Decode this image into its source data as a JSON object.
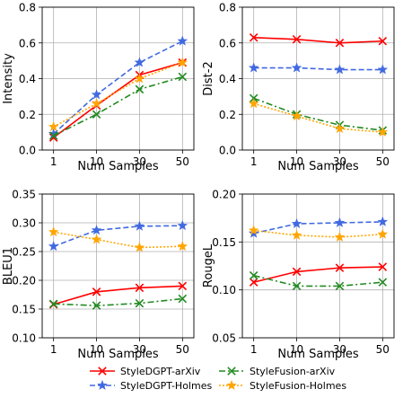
{
  "series_styles": [
    {
      "key": "arxiv_dgpt",
      "label": "StyleDGPT-arXiv",
      "color": "#ff0000",
      "dash": "",
      "marker": "x"
    },
    {
      "key": "holmes_dgpt",
      "label": "StyleDGPT-Holmes",
      "color": "#4169e1",
      "dash": "6,3",
      "marker": "star"
    },
    {
      "key": "arxiv_fusion",
      "label": "StyleFusion-arXiv",
      "color": "#228b22",
      "dash": "7,3,2,3",
      "marker": "x"
    },
    {
      "key": "holmes_fusion",
      "label": "StyleFusion-Holmes",
      "color": "#ffa500",
      "dash": "2,2",
      "marker": "star"
    }
  ],
  "chart_data": [
    {
      "type": "line",
      "x": [
        "1",
        "10",
        "30",
        "50"
      ],
      "xlabel": "Num Samples",
      "ylabel": "Intensity",
      "ylim": [
        0.0,
        0.8
      ],
      "yticks": [
        "0.0",
        "0.2",
        "0.4",
        "0.6",
        "0.8"
      ],
      "grid": true,
      "series": [
        {
          "name": "StyleDGPT-arXiv",
          "values": [
            0.07,
            0.25,
            0.42,
            0.49
          ]
        },
        {
          "name": "StyleDGPT-Holmes",
          "values": [
            0.09,
            0.31,
            0.49,
            0.61
          ]
        },
        {
          "name": "StyleFusion-arXiv",
          "values": [
            0.08,
            0.2,
            0.34,
            0.41
          ]
        },
        {
          "name": "StyleFusion-Holmes",
          "values": [
            0.13,
            0.26,
            0.4,
            0.49
          ]
        }
      ]
    },
    {
      "type": "line",
      "x": [
        "1",
        "10",
        "30",
        "50"
      ],
      "xlabel": "Num Samples",
      "ylabel": "Dist-2",
      "ylim": [
        0.0,
        0.8
      ],
      "yticks": [
        "0.0",
        "0.2",
        "0.4",
        "0.6",
        "0.8"
      ],
      "grid": true,
      "series": [
        {
          "name": "StyleDGPT-arXiv",
          "values": [
            0.63,
            0.62,
            0.6,
            0.61
          ]
        },
        {
          "name": "StyleDGPT-Holmes",
          "values": [
            0.46,
            0.46,
            0.45,
            0.45
          ]
        },
        {
          "name": "StyleFusion-arXiv",
          "values": [
            0.29,
            0.2,
            0.14,
            0.11
          ]
        },
        {
          "name": "StyleFusion-Holmes",
          "values": [
            0.26,
            0.19,
            0.12,
            0.1
          ]
        }
      ]
    },
    {
      "type": "line",
      "x": [
        "1",
        "10",
        "30",
        "50"
      ],
      "xlabel": "Num Samples",
      "ylabel": "BLEU1",
      "ylim": [
        0.1,
        0.35
      ],
      "yticks": [
        "0.10",
        "0.15",
        "0.20",
        "0.25",
        "0.30",
        "0.35"
      ],
      "grid": true,
      "series": [
        {
          "name": "StyleDGPT-arXiv",
          "values": [
            0.158,
            0.18,
            0.187,
            0.19
          ]
        },
        {
          "name": "StyleDGPT-Holmes",
          "values": [
            0.259,
            0.287,
            0.294,
            0.295
          ]
        },
        {
          "name": "StyleFusion-arXiv",
          "values": [
            0.159,
            0.156,
            0.16,
            0.168
          ]
        },
        {
          "name": "StyleFusion-Holmes",
          "values": [
            0.284,
            0.271,
            0.257,
            0.259
          ]
        }
      ]
    },
    {
      "type": "line",
      "x": [
        "1",
        "10",
        "30",
        "50"
      ],
      "xlabel": "Num Samples",
      "ylabel": "RougeL",
      "ylim": [
        0.05,
        0.2
      ],
      "yticks": [
        "0.05",
        "0.10",
        "0.15",
        "0.20"
      ],
      "grid": true,
      "series": [
        {
          "name": "StyleDGPT-arXiv",
          "values": [
            0.108,
            0.119,
            0.123,
            0.124
          ]
        },
        {
          "name": "StyleDGPT-Holmes",
          "values": [
            0.159,
            0.169,
            0.17,
            0.171
          ]
        },
        {
          "name": "StyleFusion-arXiv",
          "values": [
            0.115,
            0.104,
            0.104,
            0.108
          ]
        },
        {
          "name": "StyleFusion-Holmes",
          "values": [
            0.162,
            0.157,
            0.155,
            0.158
          ]
        }
      ]
    }
  ]
}
